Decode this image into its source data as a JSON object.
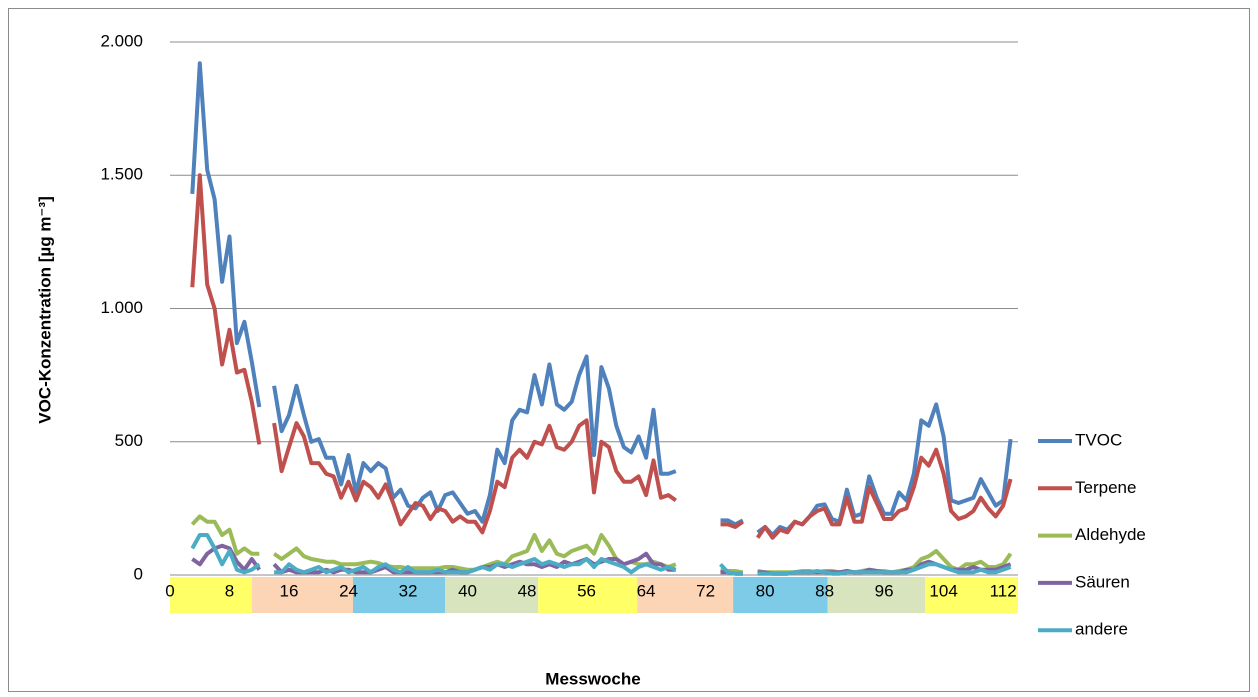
{
  "chart_data": {
    "type": "line",
    "y_label": "VOC-Konzentration [µg m⁻³]",
    "x_label": "Messwoche",
    "xlim": [
      0,
      114
    ],
    "ylim": [
      0,
      2000
    ],
    "xticks": [
      0,
      8,
      16,
      24,
      32,
      40,
      48,
      56,
      64,
      72,
      80,
      88,
      96,
      104,
      112
    ],
    "yticks": [
      0,
      500,
      {
        "value": 1000,
        "label": "1.000"
      },
      {
        "value": 1500,
        "label": "1.500"
      },
      {
        "value": 2000,
        "label": "2.000"
      }
    ],
    "grid": true,
    "legend": "right",
    "bands": [
      {
        "from": 0,
        "to": 11,
        "color": "#ffff66"
      },
      {
        "from": 11,
        "to": 24.6,
        "color": "#fbd5b5"
      },
      {
        "from": 24.6,
        "to": 37,
        "color": "#7dcbe6"
      },
      {
        "from": 37,
        "to": 49.5,
        "color": "#d7e4bd"
      },
      {
        "from": 49.5,
        "to": 62.8,
        "color": "#ffff66"
      },
      {
        "from": 62.8,
        "to": 75.7,
        "color": "#fbd5b5"
      },
      {
        "from": 75.7,
        "to": 88.4,
        "color": "#7dcbe6"
      },
      {
        "from": 88.4,
        "to": 101.5,
        "color": "#d7e4bd"
      },
      {
        "from": 101.5,
        "to": 114,
        "color": "#ffff66"
      }
    ],
    "x": [
      3,
      4,
      5,
      6,
      7,
      8,
      9,
      10,
      11,
      12,
      13,
      14,
      15,
      16,
      17,
      18,
      19,
      20,
      21,
      22,
      23,
      24,
      25,
      26,
      27,
      28,
      29,
      30,
      31,
      32,
      33,
      34,
      35,
      36,
      37,
      38,
      39,
      40,
      41,
      42,
      43,
      44,
      45,
      46,
      47,
      48,
      49,
      50,
      51,
      52,
      53,
      54,
      55,
      56,
      57,
      58,
      59,
      60,
      61,
      62,
      63,
      64,
      65,
      66,
      67,
      68,
      69,
      70,
      71,
      72,
      73,
      74,
      75,
      76,
      77,
      78,
      79,
      80,
      81,
      82,
      83,
      84,
      85,
      86,
      87,
      88,
      89,
      90,
      91,
      92,
      93,
      94,
      95,
      96,
      97,
      98,
      99,
      100,
      101,
      102,
      103,
      104,
      105,
      106,
      107,
      108,
      109,
      110,
      111,
      112,
      113
    ],
    "series": [
      {
        "name": "TVOC",
        "color": "#4f81bd",
        "values": [
          1430,
          1920,
          1520,
          1410,
          1100,
          1270,
          870,
          950,
          800,
          630,
          null,
          710,
          540,
          600,
          710,
          600,
          500,
          510,
          440,
          440,
          340,
          450,
          310,
          420,
          390,
          420,
          400,
          290,
          320,
          260,
          250,
          290,
          310,
          240,
          300,
          310,
          270,
          230,
          240,
          200,
          300,
          470,
          420,
          580,
          620,
          610,
          750,
          640,
          790,
          640,
          620,
          650,
          750,
          820,
          450,
          780,
          700,
          560,
          480,
          460,
          520,
          440,
          620,
          380,
          380,
          390,
          null,
          null,
          null,
          null,
          null,
          205,
          205,
          190,
          205,
          null,
          160,
          180,
          150,
          180,
          170,
          200,
          190,
          220,
          260,
          265,
          210,
          200,
          320,
          220,
          230,
          370,
          290,
          230,
          230,
          310,
          280,
          380,
          580,
          560,
          640,
          520,
          280,
          270,
          280,
          290,
          360,
          310,
          260,
          280,
          510
        ]
      },
      {
        "name": "Terpene",
        "color": "#c0504d",
        "values": [
          1080,
          1500,
          1090,
          1000,
          790,
          920,
          760,
          770,
          650,
          490,
          null,
          570,
          390,
          480,
          570,
          520,
          420,
          420,
          380,
          370,
          290,
          350,
          280,
          350,
          330,
          290,
          340,
          270,
          190,
          230,
          270,
          260,
          210,
          250,
          240,
          200,
          220,
          200,
          200,
          160,
          240,
          350,
          330,
          440,
          470,
          440,
          500,
          490,
          560,
          480,
          470,
          500,
          560,
          580,
          310,
          500,
          480,
          390,
          350,
          350,
          370,
          300,
          430,
          290,
          300,
          280,
          null,
          null,
          null,
          null,
          null,
          190,
          190,
          180,
          200,
          null,
          140,
          180,
          140,
          170,
          160,
          200,
          190,
          220,
          240,
          250,
          190,
          190,
          290,
          200,
          200,
          330,
          270,
          210,
          210,
          240,
          250,
          330,
          440,
          410,
          470,
          380,
          240,
          210,
          220,
          240,
          290,
          250,
          220,
          260,
          360
        ]
      },
      {
        "name": "Aldehyde",
        "color": "#9bbb59",
        "values": [
          190,
          220,
          200,
          200,
          150,
          170,
          80,
          100,
          80,
          80,
          null,
          80,
          60,
          80,
          100,
          70,
          60,
          55,
          50,
          50,
          40,
          40,
          40,
          45,
          50,
          45,
          35,
          30,
          30,
          25,
          25,
          25,
          25,
          25,
          30,
          30,
          25,
          20,
          20,
          30,
          40,
          50,
          40,
          70,
          80,
          90,
          150,
          90,
          130,
          80,
          70,
          90,
          100,
          110,
          80,
          150,
          110,
          60,
          40,
          50,
          40,
          40,
          50,
          40,
          30,
          40,
          null,
          null,
          null,
          null,
          null,
          20,
          15,
          15,
          10,
          null,
          15,
          10,
          10,
          10,
          10,
          10,
          15,
          15,
          10,
          15,
          15,
          10,
          15,
          10,
          15,
          20,
          15,
          15,
          10,
          15,
          20,
          30,
          60,
          70,
          90,
          60,
          30,
          20,
          40,
          40,
          50,
          30,
          30,
          40,
          80
        ]
      },
      {
        "name": "Säuren",
        "color": "#8064a2",
        "values": [
          60,
          40,
          80,
          100,
          110,
          100,
          50,
          20,
          60,
          20,
          null,
          40,
          10,
          20,
          10,
          10,
          10,
          10,
          20,
          10,
          20,
          20,
          10,
          10,
          10,
          20,
          30,
          10,
          10,
          10,
          10,
          10,
          10,
          10,
          10,
          20,
          10,
          10,
          20,
          30,
          30,
          40,
          30,
          40,
          50,
          40,
          40,
          30,
          40,
          30,
          50,
          40,
          50,
          60,
          40,
          50,
          60,
          60,
          40,
          50,
          60,
          80,
          40,
          40,
          20,
          20,
          null,
          null,
          null,
          null,
          null,
          10,
          10,
          5,
          5,
          null,
          10,
          10,
          5,
          5,
          5,
          10,
          10,
          10,
          10,
          10,
          10,
          10,
          15,
          10,
          10,
          20,
          15,
          10,
          10,
          10,
          20,
          20,
          40,
          50,
          40,
          30,
          20,
          20,
          20,
          30,
          20,
          20,
          20,
          30,
          40
        ]
      },
      {
        "name": "andere",
        "color": "#4bacc6",
        "values": [
          100,
          150,
          150,
          100,
          40,
          90,
          20,
          10,
          20,
          40,
          null,
          10,
          10,
          40,
          20,
          10,
          20,
          30,
          10,
          20,
          30,
          10,
          20,
          30,
          10,
          30,
          40,
          20,
          10,
          30,
          10,
          10,
          10,
          20,
          10,
          10,
          10,
          10,
          20,
          30,
          20,
          40,
          40,
          30,
          40,
          50,
          60,
          40,
          50,
          40,
          30,
          40,
          40,
          60,
          30,
          60,
          50,
          40,
          30,
          10,
          30,
          40,
          30,
          20,
          30,
          20,
          null,
          null,
          null,
          null,
          null,
          40,
          10,
          5,
          5,
          null,
          5,
          5,
          5,
          5,
          5,
          10,
          10,
          10,
          15,
          10,
          5,
          5,
          10,
          10,
          10,
          10,
          10,
          10,
          10,
          10,
          10,
          20,
          30,
          40,
          40,
          30,
          20,
          10,
          10,
          10,
          20,
          10,
          10,
          20,
          30
        ]
      }
    ]
  }
}
